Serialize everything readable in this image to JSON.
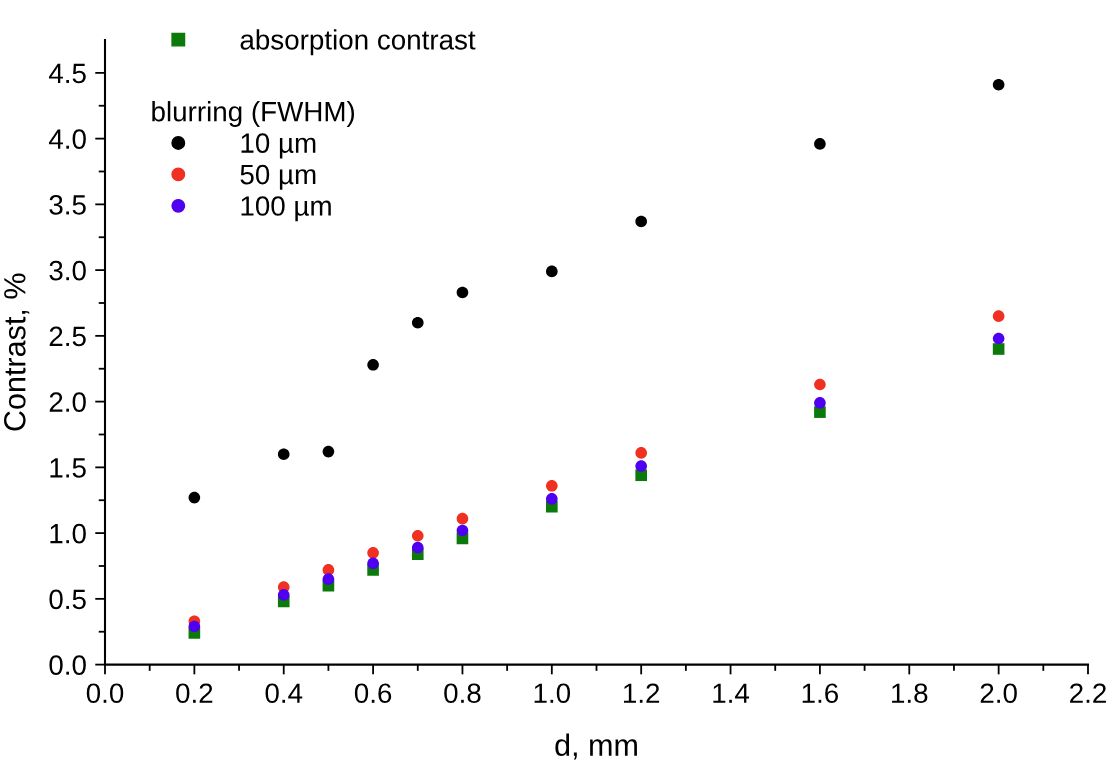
{
  "chart_data": {
    "type": "scatter",
    "xlabel": "d, mm",
    "ylabel": "Contrast, %",
    "legend_title": "blurring (FWHM)",
    "legend": "top left",
    "grid": false,
    "x": [
      0.2,
      0.4,
      0.5,
      0.6,
      0.7,
      0.8,
      1.0,
      1.2,
      1.6,
      2.0
    ],
    "series": [
      {
        "name": "absorption contrast",
        "color": "#0b7a0b",
        "marker": "square",
        "values": [
          0.24,
          0.48,
          0.6,
          0.72,
          0.84,
          0.96,
          1.2,
          1.44,
          1.92,
          2.4
        ]
      },
      {
        "name": "10 µm",
        "color": "#000000",
        "marker": "circle",
        "values": [
          1.27,
          1.6,
          1.62,
          2.28,
          2.6,
          2.83,
          2.99,
          3.37,
          3.96,
          4.41
        ]
      },
      {
        "name": "50 µm",
        "color": "#f03020",
        "marker": "circle",
        "values": [
          0.33,
          0.59,
          0.72,
          0.85,
          0.98,
          1.11,
          1.36,
          1.61,
          2.13,
          2.65
        ]
      },
      {
        "name": "100 µm",
        "color": "#5000f0",
        "marker": "circle",
        "values": [
          0.29,
          0.53,
          0.65,
          0.77,
          0.89,
          1.02,
          1.26,
          1.51,
          1.99,
          2.48
        ]
      }
    ],
    "xlim": [
      0,
      2.2
    ],
    "xticks": [
      "0.0",
      {
        "value": 0.1,
        "label": null
      },
      {
        "value": 0.2,
        "label": "0.2"
      },
      {
        "value": 0.3,
        "label": null
      },
      {
        "value": 0.4,
        "label": "0.4"
      },
      {
        "value": 0.5,
        "label": null
      },
      {
        "value": 0.6,
        "label": "0.6"
      },
      {
        "value": 0.7,
        "label": null
      },
      {
        "value": 0.8,
        "label": "0.8"
      },
      {
        "value": 0.9,
        "label": null
      },
      {
        "value": 1.0,
        "label": "1.0"
      },
      {
        "value": 1.1,
        "label": null
      },
      {
        "value": 1.2,
        "label": "1.2"
      },
      {
        "value": 1.3,
        "label": null
      },
      {
        "value": 1.4,
        "label": "1.4"
      },
      {
        "value": 1.5,
        "label": null
      },
      {
        "value": 1.6,
        "label": "1.6"
      },
      {
        "value": 1.7,
        "label": null
      },
      {
        "value": 1.8,
        "label": "1.8"
      },
      {
        "value": 1.9,
        "label": null
      },
      {
        "value": 2.0,
        "label": "2.0"
      },
      {
        "value": 2.1,
        "label": null
      },
      {
        "value": 2.2,
        "label": "2.2"
      }
    ],
    "ylim": [
      0,
      4.75
    ],
    "yticks": [
      {
        "value": 0,
        "label": "0.0"
      },
      {
        "value": 0.25,
        "label": null
      },
      {
        "value": 0.5,
        "label": "0.5"
      },
      {
        "value": 0.75,
        "label": null
      },
      {
        "value": 1.0,
        "label": "1.0"
      },
      {
        "value": 1.25,
        "label": null
      },
      {
        "value": 1.5,
        "label": "1.5"
      },
      {
        "value": 1.75,
        "label": null
      },
      {
        "value": 2.0,
        "label": "2.0"
      },
      {
        "value": 2.25,
        "label": null
      },
      {
        "value": 2.5,
        "label": "2.5"
      },
      {
        "value": 2.75,
        "label": null
      },
      {
        "value": 3.0,
        "label": "3.0"
      },
      {
        "value": 3.25,
        "label": null
      },
      {
        "value": 3.5,
        "label": "3.5"
      },
      {
        "value": 3.75,
        "label": null
      },
      {
        "value": 4.0,
        "label": "4.0"
      },
      {
        "value": 4.25,
        "label": null
      },
      {
        "value": 4.5,
        "label": "4.5"
      }
    ]
  }
}
